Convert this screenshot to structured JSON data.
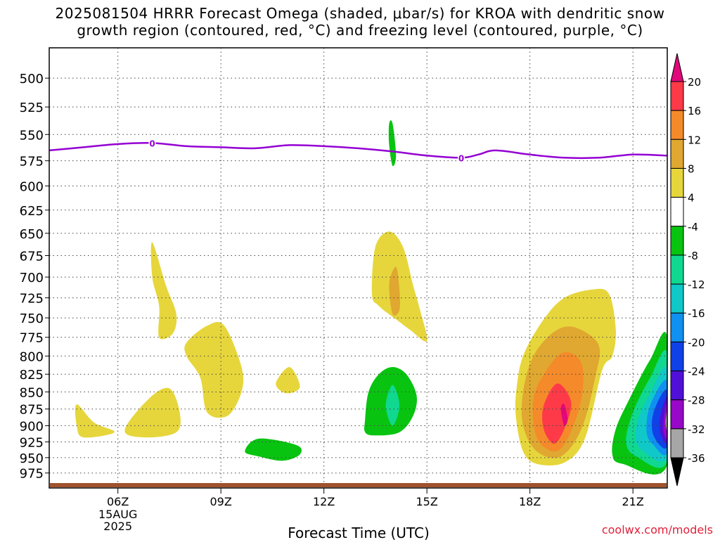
{
  "title_line1": "2025081504 HRRR Forecast Omega (shaded, μbar/s) for KROA with dendritic snow",
  "title_line2": "growth region (contoured, red, °C) and freezing level (contoured, purple, °C)",
  "credit": "coolwx.com/models",
  "chart_data": {
    "type": "heatmap",
    "title": "2025081504 HRRR Forecast Omega (shaded, μbar/s) for KROA with dendritic snow growth region (contoured, red, °C) and freezing level (contoured, purple, °C)",
    "xlabel": "Forecast Time (UTC)",
    "ylabel": "",
    "x_ticks": [
      {
        "label": "06Z",
        "hour": 6
      },
      {
        "label": "09Z",
        "hour": 9
      },
      {
        "label": "12Z",
        "hour": 12
      },
      {
        "label": "15Z",
        "hour": 15
      },
      {
        "label": "18Z",
        "hour": 18
      },
      {
        "label": "21Z",
        "hour": 21
      }
    ],
    "date_label": [
      "15AUG",
      "2025"
    ],
    "xlim": [
      4,
      22
    ],
    "y_ticks": [
      500,
      525,
      550,
      575,
      600,
      625,
      650,
      675,
      700,
      725,
      750,
      775,
      800,
      825,
      850,
      875,
      900,
      925,
      950,
      975
    ],
    "ylim": [
      1000,
      475
    ],
    "y_scale": "log-pressure",
    "grid": "dotted",
    "colorbar": {
      "labels": [
        "20",
        "16",
        "12",
        "8",
        "4",
        "-4",
        "-8",
        "-12",
        "-16",
        "-20",
        "-24",
        "-28",
        "-32",
        "-36"
      ],
      "colors": [
        "#e0087a",
        "#ff3a48",
        "#f58a2a",
        "#e0a830",
        "#e6d63c",
        "#ffffff",
        "#08c410",
        "#10d890",
        "#10c8c8",
        "#1090f0",
        "#1040e8",
        "#5010d8",
        "#9808c8",
        "#a6a6a6",
        "#000000"
      ]
    },
    "freezing_level": {
      "color": "#9400d3",
      "label": "0",
      "points": [
        [
          4.0,
          565
        ],
        [
          5.0,
          562
        ],
        [
          6.0,
          559
        ],
        [
          7.0,
          558
        ],
        [
          8.0,
          561
        ],
        [
          9.0,
          562
        ],
        [
          10.0,
          563
        ],
        [
          11.0,
          560
        ],
        [
          12.0,
          561
        ],
        [
          13.0,
          563
        ],
        [
          14.0,
          566
        ],
        [
          15.0,
          570
        ],
        [
          16.0,
          572
        ],
        [
          16.5,
          569
        ],
        [
          17.0,
          565
        ],
        [
          18.0,
          569
        ],
        [
          19.0,
          572
        ],
        [
          20.0,
          572
        ],
        [
          21.0,
          569
        ],
        [
          22.0,
          570
        ]
      ]
    },
    "omega_regions": [
      {
        "value_range": [
          4,
          8
        ],
        "color": "#e6d63c",
        "points": [
          [
            4.8,
            868
          ],
          [
            5.3,
            895
          ],
          [
            5.9,
            910
          ],
          [
            5.0,
            918
          ],
          [
            4.8,
            900
          ]
        ]
      },
      {
        "value_range": [
          4,
          8
        ],
        "color": "#e6d63c",
        "points": [
          [
            6.2,
            907
          ],
          [
            6.9,
            860
          ],
          [
            7.5,
            845
          ],
          [
            7.8,
            880
          ],
          [
            7.7,
            910
          ],
          [
            6.8,
            918
          ]
        ]
      },
      {
        "value_range": [
          4,
          8
        ],
        "color": "#e6d63c",
        "points": [
          [
            7.0,
            660
          ],
          [
            7.4,
            710
          ],
          [
            7.7,
            745
          ],
          [
            7.6,
            770
          ],
          [
            7.2,
            775
          ],
          [
            7.2,
            735
          ],
          [
            7.0,
            700
          ]
        ]
      },
      {
        "value_range": [
          4,
          8
        ],
        "color": "#e6d63c",
        "points": [
          [
            8.0,
            782
          ],
          [
            8.6,
            760
          ],
          [
            9.1,
            760
          ],
          [
            9.6,
            815
          ],
          [
            9.6,
            850
          ],
          [
            9.2,
            885
          ],
          [
            8.6,
            880
          ],
          [
            8.4,
            830
          ],
          [
            8.0,
            800
          ]
        ]
      },
      {
        "value_range": [
          4,
          8
        ],
        "color": "#e6d63c",
        "points": [
          [
            10.6,
            838
          ],
          [
            11.0,
            815
          ],
          [
            11.3,
            843
          ],
          [
            10.9,
            852
          ]
        ]
      },
      {
        "value_range": [
          4,
          8
        ],
        "color": "#e6d63c",
        "points": [
          [
            13.4,
            720
          ],
          [
            13.5,
            665
          ],
          [
            13.9,
            648
          ],
          [
            14.3,
            665
          ],
          [
            14.6,
            710
          ],
          [
            14.8,
            740
          ],
          [
            15.0,
            780
          ],
          [
            14.5,
            765
          ],
          [
            14.2,
            755
          ],
          [
            13.6,
            735
          ]
        ]
      },
      {
        "value_range": [
          8,
          12
        ],
        "color": "#e0a830",
        "points": [
          [
            13.9,
            708
          ],
          [
            14.1,
            688
          ],
          [
            14.2,
            715
          ],
          [
            14.2,
            740
          ],
          [
            14.0,
            745
          ]
        ]
      },
      {
        "value_range": [
          -8,
          -4
        ],
        "color": "#08c410",
        "points": [
          [
            14.0,
            540
          ],
          [
            14.1,
            570
          ],
          [
            14.0,
            580
          ],
          [
            13.9,
            560
          ],
          [
            13.9,
            540
          ]
        ]
      },
      {
        "value_range": [
          -8,
          -4
        ],
        "color": "#08c410",
        "points": [
          [
            13.2,
            890
          ],
          [
            13.3,
            850
          ],
          [
            13.6,
            825
          ],
          [
            14.0,
            815
          ],
          [
            14.4,
            825
          ],
          [
            14.7,
            855
          ],
          [
            14.6,
            885
          ],
          [
            14.2,
            910
          ],
          [
            13.5,
            915
          ],
          [
            13.2,
            910
          ]
        ]
      },
      {
        "value_range": [
          -12,
          -8
        ],
        "color": "#10d890",
        "points": [
          [
            13.8,
            870
          ],
          [
            14.0,
            840
          ],
          [
            14.2,
            870
          ],
          [
            14.0,
            900
          ]
        ]
      },
      {
        "value_range": [
          -8,
          -4
        ],
        "color": "#08c410",
        "points": [
          [
            9.7,
            940
          ],
          [
            10.1,
            920
          ],
          [
            11.2,
            930
          ],
          [
            11.3,
            945
          ],
          [
            10.8,
            955
          ],
          [
            10.1,
            948
          ]
        ]
      },
      {
        "value_range": [
          4,
          8
        ],
        "color": "#e6d63c",
        "points": [
          [
            17.6,
            850
          ],
          [
            17.8,
            800
          ],
          [
            18.4,
            752
          ],
          [
            19.0,
            725
          ],
          [
            19.8,
            715
          ],
          [
            20.3,
            720
          ],
          [
            20.5,
            765
          ],
          [
            20.4,
            800
          ],
          [
            20.1,
            820
          ],
          [
            19.6,
            920
          ],
          [
            19.0,
            958
          ],
          [
            18.2,
            960
          ],
          [
            17.8,
            940
          ],
          [
            17.6,
            890
          ]
        ]
      },
      {
        "value_range": [
          8,
          12
        ],
        "color": "#e0a830",
        "points": [
          [
            17.8,
            850
          ],
          [
            18.1,
            800
          ],
          [
            18.7,
            768
          ],
          [
            19.3,
            762
          ],
          [
            20.0,
            785
          ],
          [
            19.9,
            830
          ],
          [
            19.5,
            905
          ],
          [
            18.9,
            948
          ],
          [
            18.2,
            940
          ],
          [
            17.8,
            900
          ]
        ]
      },
      {
        "value_range": [
          12,
          16
        ],
        "color": "#f58a2a",
        "points": [
          [
            18.1,
            860
          ],
          [
            18.5,
            818
          ],
          [
            19.0,
            795
          ],
          [
            19.5,
            810
          ],
          [
            19.5,
            860
          ],
          [
            19.1,
            920
          ],
          [
            18.7,
            940
          ],
          [
            18.2,
            918
          ]
        ]
      },
      {
        "value_range": [
          16,
          20
        ],
        "color": "#ff3a48",
        "points": [
          [
            18.4,
            870
          ],
          [
            18.8,
            838
          ],
          [
            19.2,
            865
          ],
          [
            19.0,
            905
          ],
          [
            18.7,
            928
          ],
          [
            18.4,
            905
          ]
        ]
      },
      {
        "value_range": [
          20,
          24
        ],
        "color": "#e0087a",
        "points": [
          [
            18.9,
            875
          ],
          [
            19.0,
            868
          ],
          [
            19.1,
            890
          ],
          [
            19.0,
            900
          ]
        ]
      },
      {
        "value_range": [
          -8,
          -4
        ],
        "color": "#08c410",
        "points": [
          [
            22.0,
            775
          ],
          [
            21.5,
            805
          ],
          [
            20.9,
            860
          ],
          [
            20.5,
            905
          ],
          [
            20.4,
            945
          ],
          [
            20.7,
            960
          ],
          [
            22.0,
            962
          ]
        ]
      },
      {
        "value_range": [
          -12,
          -8
        ],
        "color": "#10d890",
        "points": [
          [
            22.0,
            797
          ],
          [
            21.5,
            830
          ],
          [
            21.0,
            880
          ],
          [
            20.8,
            925
          ],
          [
            21.1,
            948
          ],
          [
            22.0,
            955
          ]
        ]
      },
      {
        "value_range": [
          -16,
          -12
        ],
        "color": "#10c8c8",
        "points": [
          [
            22.0,
            818
          ],
          [
            21.5,
            852
          ],
          [
            21.1,
            900
          ],
          [
            21.2,
            935
          ],
          [
            22.0,
            948
          ]
        ]
      },
      {
        "value_range": [
          -20,
          -16
        ],
        "color": "#1090f0",
        "points": [
          [
            22.0,
            835
          ],
          [
            21.5,
            870
          ],
          [
            21.4,
            910
          ],
          [
            21.6,
            930
          ],
          [
            22.0,
            940
          ]
        ]
      },
      {
        "value_range": [
          -24,
          -20
        ],
        "color": "#1040e8",
        "points": [
          [
            22.0,
            848
          ],
          [
            21.6,
            880
          ],
          [
            21.6,
            915
          ],
          [
            22.0,
            932
          ]
        ]
      },
      {
        "value_range": [
          -28,
          -24
        ],
        "color": "#5010d8",
        "points": [
          [
            22.0,
            858
          ],
          [
            21.8,
            885
          ],
          [
            21.8,
            912
          ],
          [
            22.0,
            925
          ]
        ]
      },
      {
        "value_range": [
          -32,
          -28
        ],
        "color": "#9808c8",
        "points": [
          [
            22.0,
            866
          ],
          [
            21.9,
            890
          ],
          [
            21.9,
            910
          ],
          [
            22.0,
            918
          ]
        ]
      },
      {
        "value_range": [
          -36,
          -32
        ],
        "color": "#a6a6a6",
        "points": [
          [
            22.0,
            878
          ],
          [
            21.95,
            895
          ],
          [
            22.0,
            908
          ]
        ]
      }
    ],
    "terrain_color": "#a0522d"
  }
}
